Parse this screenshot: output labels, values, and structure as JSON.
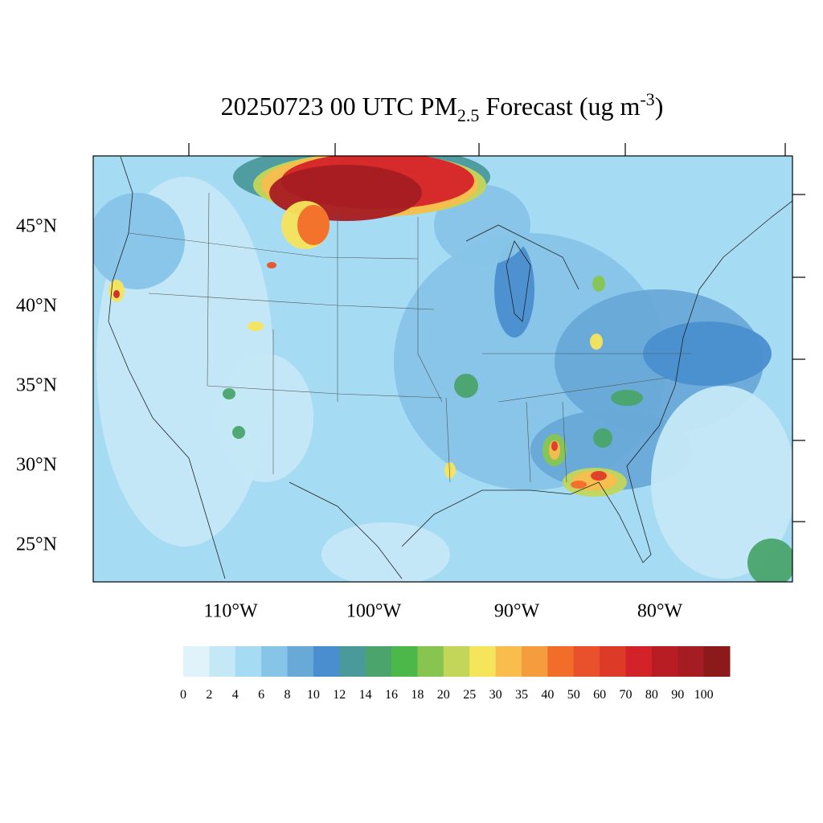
{
  "title": {
    "main": "20250723 00 UTC PM",
    "sub": "2.5",
    "mid": " Forecast (ug m",
    "sup": "-3",
    "end": ")"
  },
  "map": {
    "lat_labels": [
      "45°N",
      "40°N",
      "35°N",
      "30°N",
      "25°N"
    ],
    "lon_labels": [
      "110°W",
      "100°W",
      "90°W",
      "80°W"
    ]
  },
  "colorbar": {
    "labels": [
      "0",
      "2",
      "4",
      "6",
      "8",
      "10",
      "12",
      "14",
      "16",
      "18",
      "20",
      "25",
      "30",
      "35",
      "40",
      "50",
      "60",
      "70",
      "80",
      "90",
      "100"
    ],
    "colors": [
      "#e0f3fb",
      "#c5e8f7",
      "#a6dbf4",
      "#86c4e8",
      "#68a9d8",
      "#4a8ecf",
      "#4a9a9c",
      "#4aa46c",
      "#4db84a",
      "#88c550",
      "#c3d65a",
      "#f5e55a",
      "#f8bd4d",
      "#f59c3e",
      "#f26d2a",
      "#e8512b",
      "#de3a28",
      "#d42229",
      "#b81d24",
      "#a51c22",
      "#8c1a1a"
    ]
  }
}
